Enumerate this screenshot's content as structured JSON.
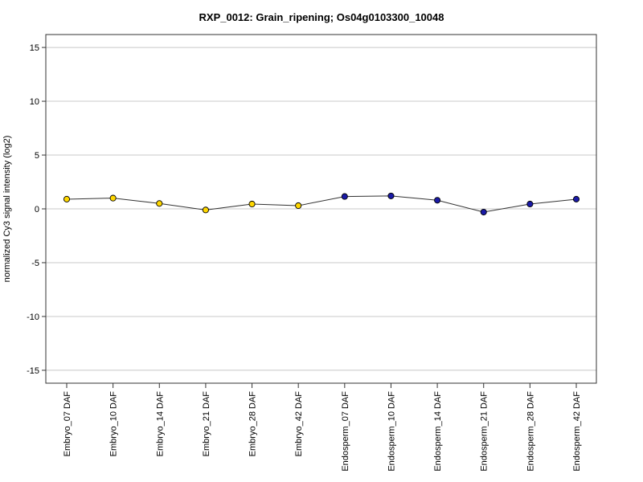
{
  "chart_data": {
    "type": "line",
    "title": "RXP_0012: Grain_ripening; Os04g0103300_10048",
    "xlabel": "",
    "ylabel": "normalized Cy3 signal intensity (log2)",
    "ylim": [
      -16.2,
      16.2
    ],
    "yticks": [
      -15,
      -10,
      -5,
      0,
      5,
      10,
      15
    ],
    "grid": true,
    "categories": [
      "Embryo_07 DAF",
      "Embryo_10 DAF",
      "Embryo_14 DAF",
      "Embryo_21 DAF",
      "Embryo_28 DAF",
      "Embryo_42 DAF",
      "Endosperm_07 DAF",
      "Endosperm_10 DAF",
      "Endosperm_14 DAF",
      "Endosperm_21 DAF",
      "Endosperm_28 DAF",
      "Endosperm_42 DAF"
    ],
    "values": [
      0.9,
      1.0,
      0.5,
      -0.1,
      0.45,
      0.3,
      1.15,
      1.2,
      0.8,
      -0.3,
      0.45,
      0.9
    ],
    "point_colors": [
      "#ffd700",
      "#ffd700",
      "#ffd700",
      "#ffd700",
      "#ffd700",
      "#ffd700",
      "#1a1aa6",
      "#1a1aa6",
      "#1a1aa6",
      "#1a1aa6",
      "#1a1aa6",
      "#1a1aa6"
    ],
    "line_color": "#333333"
  }
}
